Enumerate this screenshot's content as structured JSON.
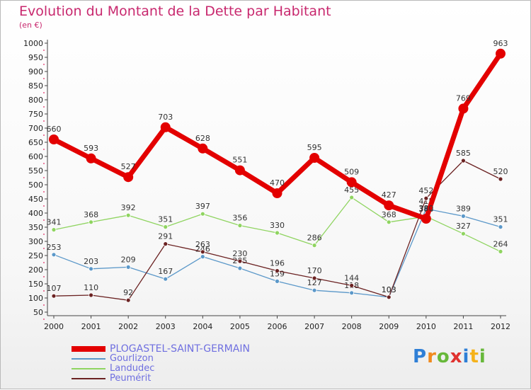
{
  "title": "Evolution du Montant de la Dette par Habitant",
  "subtitle": "(en €)",
  "logo": {
    "letters": [
      "P",
      "r",
      "o",
      "x",
      "i",
      "t",
      "i"
    ],
    "colors": [
      "#2f7fd6",
      "#f08a1e",
      "#67b83a",
      "#e0322f",
      "#2f7fd6",
      "#f5b21b",
      "#67b83a"
    ]
  },
  "chart_data": {
    "type": "line",
    "title": "Evolution du Montant de la Dette par Habitant",
    "ylabel": "(en €)",
    "xlabel": "",
    "x": [
      "2000",
      "2001",
      "2002",
      "2003",
      "2004",
      "2005",
      "2006",
      "2007",
      "2008",
      "2009",
      "2010",
      "2011",
      "2012"
    ],
    "ylim": [
      50,
      1000
    ],
    "yticks": [
      50,
      100,
      150,
      200,
      250,
      300,
      350,
      400,
      450,
      500,
      550,
      600,
      650,
      700,
      750,
      800,
      850,
      900,
      950,
      1000
    ],
    "grid": false,
    "legend_position": "bottom-left",
    "series": [
      {
        "name": "PLOGASTEL-SAINT-GERMAIN",
        "color": "#e30000",
        "width": 7,
        "marker": 7,
        "values": [
          660,
          593,
          527,
          703,
          628,
          551,
          470,
          595,
          509,
          427,
          380,
          769,
          963
        ],
        "labels": [
          "660",
          "593",
          "527",
          "703",
          "628",
          "551",
          "470",
          "595",
          "509",
          "427",
          "380",
          "769",
          "963"
        ]
      },
      {
        "name": "Gourlizon",
        "color": "#5b98c9",
        "width": 1.3,
        "marker": 3,
        "values": [
          253,
          203,
          209,
          167,
          246,
          205,
          159,
          127,
          118,
          103,
          415,
          389,
          351
        ],
        "labels": [
          "253",
          "203",
          "209",
          "167",
          "246",
          "205",
          "159",
          "127",
          "118",
          "103",
          "415",
          "389",
          "351"
        ]
      },
      {
        "name": "Landudec",
        "color": "#8fd460",
        "width": 1.3,
        "marker": 3,
        "values": [
          341,
          368,
          392,
          351,
          397,
          356,
          330,
          286,
          455,
          368,
          388,
          327,
          264
        ],
        "labels": [
          "341",
          "368",
          "392",
          "351",
          "397",
          "356",
          "330",
          "286",
          "455",
          "368",
          "388",
          "327",
          "264"
        ]
      },
      {
        "name": "Peumérit",
        "color": "#6b2222",
        "width": 1.3,
        "marker": 3,
        "values": [
          107,
          110,
          92,
          291,
          263,
          230,
          196,
          170,
          144,
          103,
          452,
          585,
          520
        ],
        "labels": [
          "107",
          "110",
          "92",
          "291",
          "263",
          "230",
          "196",
          "170",
          "144",
          "103",
          "452",
          "585",
          "520"
        ]
      }
    ]
  }
}
